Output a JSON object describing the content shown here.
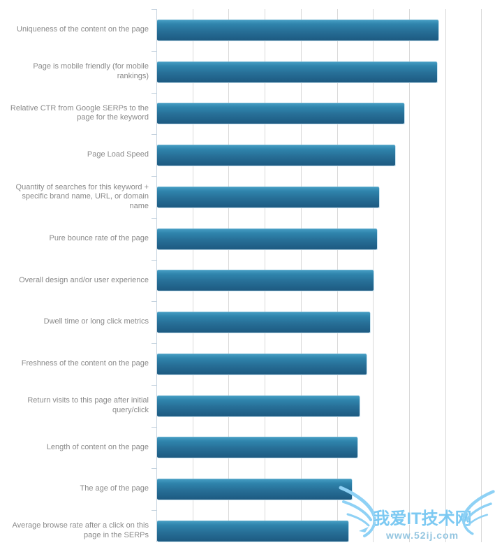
{
  "chart_data": {
    "type": "bar",
    "orientation": "horizontal",
    "title": "",
    "xlabel": "",
    "ylabel": "",
    "categories": [
      "Uniqueness of the content on the page",
      "Page is mobile friendly (for mobile rankings)",
      "Relative CTR from Google SERPs to the page for the keyword",
      "Page Load Speed",
      "Quantity of searches for this keyword + specific brand name, URL, or domain name",
      "Pure bounce rate of the page",
      "Overall design and/or user experience",
      "Dwell time or long click metrics",
      "Freshness of the content on the page",
      "Return visits to this page after initial query/click",
      "Length of content on the page",
      "The age of the page",
      "Average browse rate after a click on this page in the SERPs"
    ],
    "values": [
      7.8,
      7.75,
      6.85,
      6.6,
      6.15,
      6.1,
      6.0,
      5.9,
      5.8,
      5.6,
      5.55,
      5.4,
      5.3
    ],
    "xlim": [
      0,
      9.4
    ],
    "x_gridline_interval": 1,
    "grid": "vertical",
    "legend": "none",
    "axis_value_labels_visible": false,
    "colors": {
      "bar_gradient_top": "#48a0c6",
      "bar_gradient_bottom": "#1d5a81",
      "bar_halo": "#cde5f1",
      "gridline": "#d9d9d9",
      "axis": "#c5d3df",
      "category_label": "#8a8a8a"
    }
  },
  "watermark": {
    "title": "我爱IT技术网",
    "url": "www.52ij.com",
    "title_color": "#7cc9f2",
    "url_color": "#93c5e0"
  }
}
